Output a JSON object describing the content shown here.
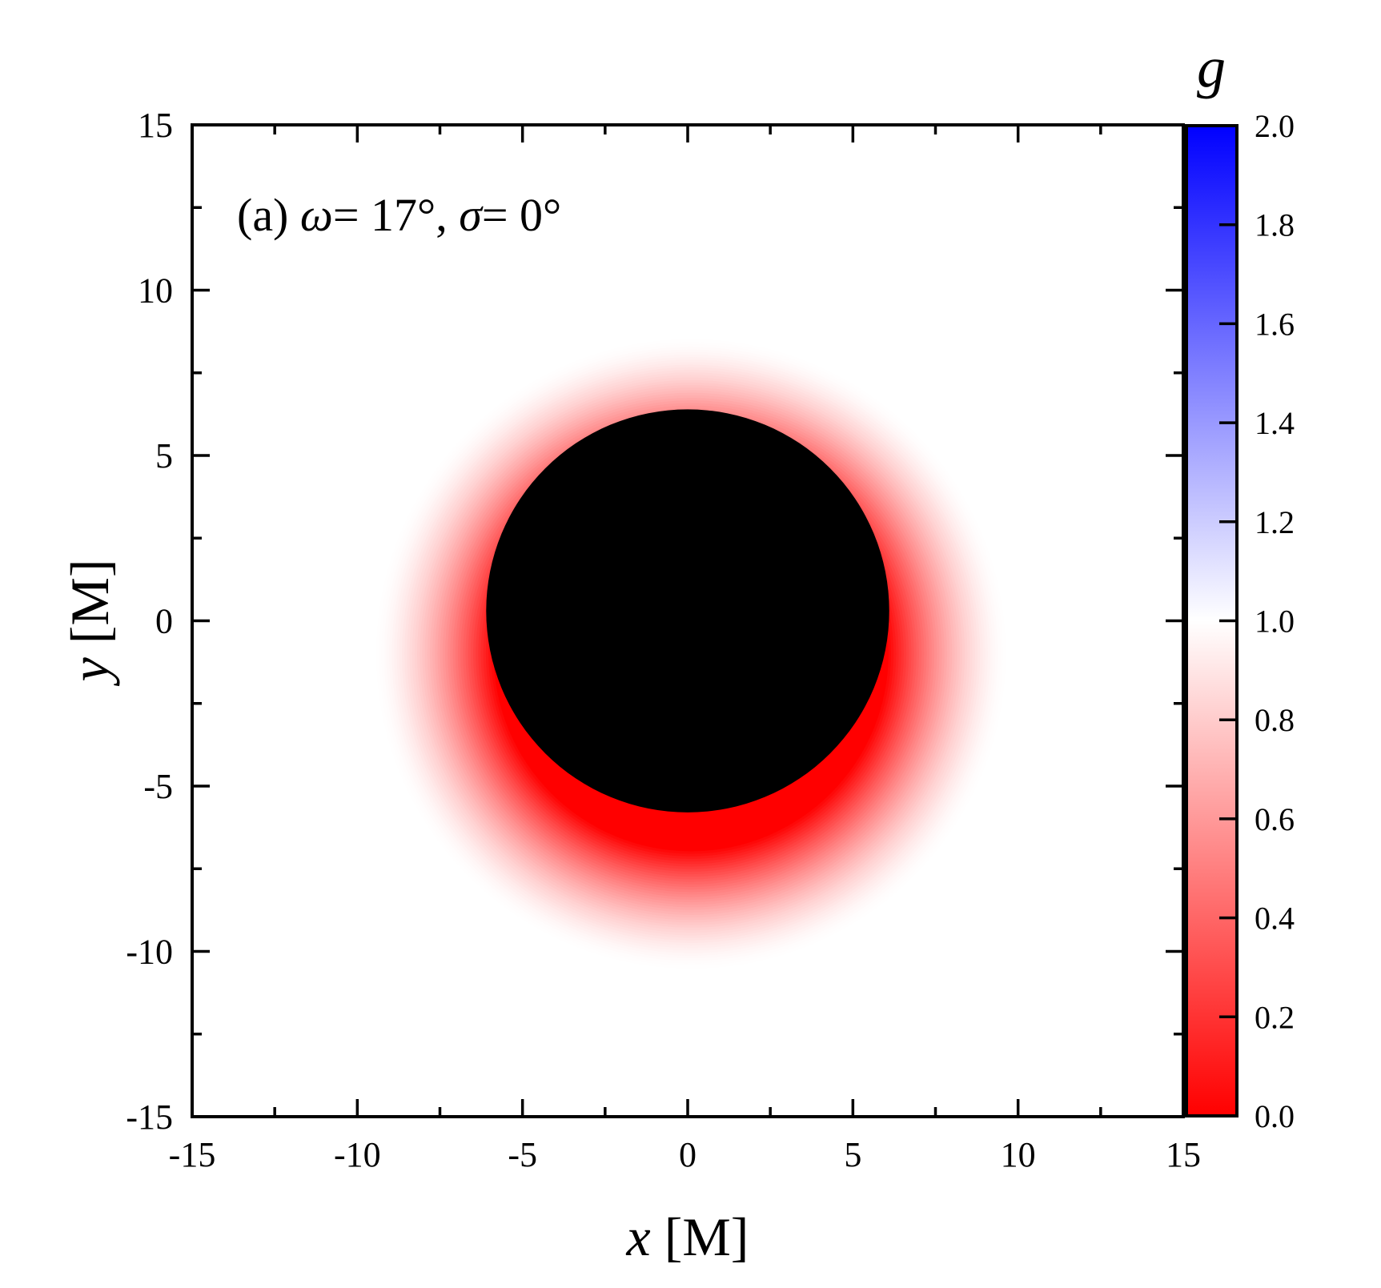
{
  "chart_data": {
    "type": "heatmap",
    "title": "",
    "panel_label": {
      "prefix": "(a) ",
      "omega_symbol": "ω",
      "omega_value": "= 17°, ",
      "sigma_symbol": "σ",
      "sigma_value": "= 0°"
    },
    "xlabel": {
      "var": "x",
      "unit": " [M]"
    },
    "ylabel": {
      "var": "y",
      "unit": " [M]"
    },
    "xlim": [
      -15,
      15
    ],
    "ylim": [
      -15,
      15
    ],
    "x_ticks": [
      -15,
      -10,
      -5,
      0,
      5,
      10,
      15
    ],
    "y_ticks": [
      -15,
      -10,
      -5,
      0,
      5,
      10,
      15
    ],
    "x_tick_labels": [
      "-15",
      "-10",
      "-5",
      "0",
      "5",
      "10",
      "15"
    ],
    "y_tick_labels": [
      "-15",
      "-10",
      "-5",
      "0",
      "5",
      "10",
      "15"
    ],
    "grid": false,
    "shadow": {
      "description": "black central disk",
      "center": [
        0,
        0.3
      ],
      "radius": 6.1,
      "color": "#000000"
    },
    "redshift_halo": {
      "center": [
        0.1,
        -1.0
      ],
      "outer_radius": 9.6,
      "g_at_inner_edge": 0.0,
      "g_at_outer_edge": 1.0
    },
    "colorbar": {
      "label": "g",
      "range": [
        0.0,
        2.0
      ],
      "ticks": [
        0.0,
        0.2,
        0.4,
        0.6,
        0.8,
        1.0,
        1.2,
        1.4,
        1.6,
        1.8,
        2.0
      ],
      "tick_labels": [
        "0.0",
        "0.2",
        "0.4",
        "0.6",
        "0.8",
        "1.0",
        "1.2",
        "1.4",
        "1.6",
        "1.8",
        "2.0"
      ],
      "colors": {
        "low": "#ff0000",
        "mid": "#ffffff",
        "high": "#0000ff"
      }
    }
  }
}
